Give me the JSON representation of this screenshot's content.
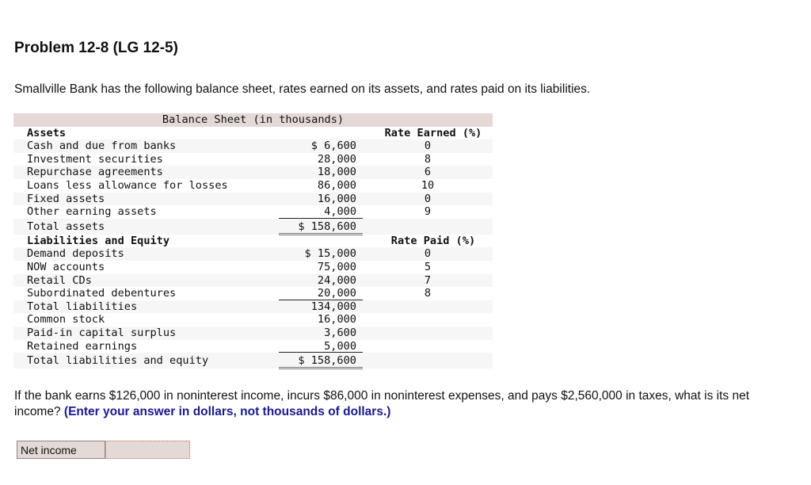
{
  "title": "Problem 12-8 (LG 12-5)",
  "intro": "Smallville Bank has the following balance sheet, rates earned on its assets, and rates paid on its liabilities.",
  "sheet": {
    "caption": "Balance Sheet (in thousands)",
    "rows": [
      {
        "type": "head",
        "label": "Assets",
        "rate": "Rate Earned (%)"
      },
      {
        "label": "Cash and due from banks",
        "amount": "$ 6,600",
        "rate": "0"
      },
      {
        "label": "Investment securities",
        "amount": "28,000",
        "rate": "8"
      },
      {
        "label": "Repurchase agreements",
        "amount": "18,000",
        "rate": "6"
      },
      {
        "label": "Loans less allowance for losses",
        "amount": "86,000",
        "rate": "10"
      },
      {
        "label": "Fixed assets",
        "amount": "16,000",
        "rate": "0"
      },
      {
        "label": "Other earning assets",
        "amount": "4,000",
        "rate": "9",
        "ul": true
      },
      {
        "type": "total",
        "label": "Total assets",
        "amount": "$ 158,600",
        "dbl": true
      },
      {
        "type": "head",
        "label": "Liabilities and Equity",
        "rate": "Rate Paid (%)"
      },
      {
        "label": "Demand deposits",
        "amount": "$ 15,000",
        "rate": "0"
      },
      {
        "label": "NOW accounts",
        "amount": "75,000",
        "rate": "5"
      },
      {
        "label": "Retail CDs",
        "amount": "24,000",
        "rate": "7"
      },
      {
        "label": "Subordinated debentures",
        "amount": "20,000",
        "rate": "8",
        "ul": true
      },
      {
        "label": "Total liabilities",
        "amount": "134,000"
      },
      {
        "label": "Common stock",
        "amount": "16,000"
      },
      {
        "label": "Paid-in capital surplus",
        "amount": "3,600"
      },
      {
        "label": "Retained earnings",
        "amount": "5,000",
        "ul": true
      },
      {
        "type": "total",
        "label": "Total liabilities and equity",
        "amount": "$ 158,600",
        "dbl": true
      }
    ]
  },
  "question": {
    "text": "If the bank earns $126,000 in noninterest income, incurs $86,000 in noninterest expenses, and pays $2,560,000 in taxes, what is its net income?",
    "instruction": "(Enter your answer in dollars, not thousands of dollars.)"
  },
  "answer": {
    "label": "Net income",
    "value": ""
  }
}
